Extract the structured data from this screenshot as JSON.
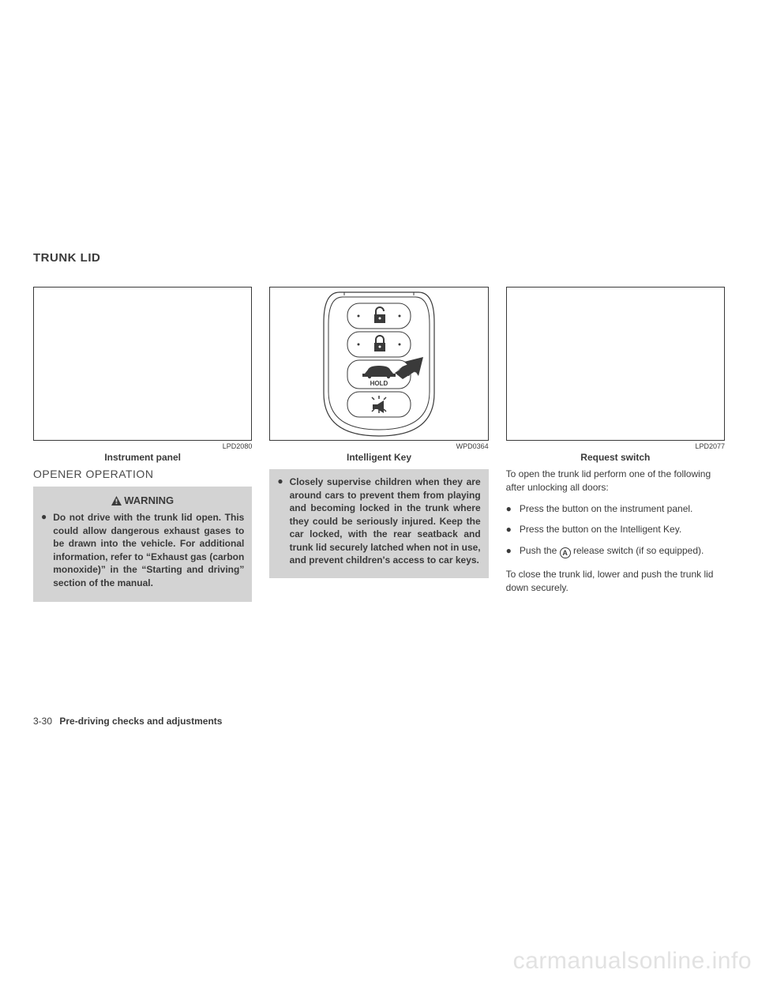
{
  "section_title": "TRUNK LID",
  "col1": {
    "fig_code": "LPD2080",
    "fig_caption": "Instrument panel",
    "subhead": "OPENER OPERATION",
    "warning_label": "WARNING",
    "warning_item": "Do not drive with the trunk lid open. This could allow dangerous exhaust gases to be drawn into the vehicle. For additional information, refer to “Exhaust gas (carbon monoxide)” in the “Starting and driving” section of the manual."
  },
  "col2": {
    "fig_code": "WPD0364",
    "fig_caption": "Intelligent Key",
    "key_hold_label": "HOLD",
    "warning_item": "Closely supervise children when they are around cars to prevent them from playing and becoming locked in the trunk where they could be seriously injured. Keep the car locked, with the rear seatback and trunk lid securely latched when not in use, and prevent children's access to car keys."
  },
  "col3": {
    "fig_code": "LPD2077",
    "fig_caption": "Request switch",
    "intro": "To open the trunk lid perform one of the following after unlocking all doors:",
    "items": [
      "Press the button on the instrument panel.",
      "Press the button on the Intelligent Key.",
      "Push the |A| release switch (if so equipped)."
    ],
    "close_text": "To close the trunk lid, lower and push the trunk lid down securely."
  },
  "footer": {
    "page": "3-30",
    "section": "Pre-driving checks and adjustments"
  },
  "watermark": "carmanualsonline.info",
  "colors": {
    "text": "#3a3a3a",
    "warning_bg": "#d3d3d3",
    "watermark": "#e2e2e2"
  }
}
